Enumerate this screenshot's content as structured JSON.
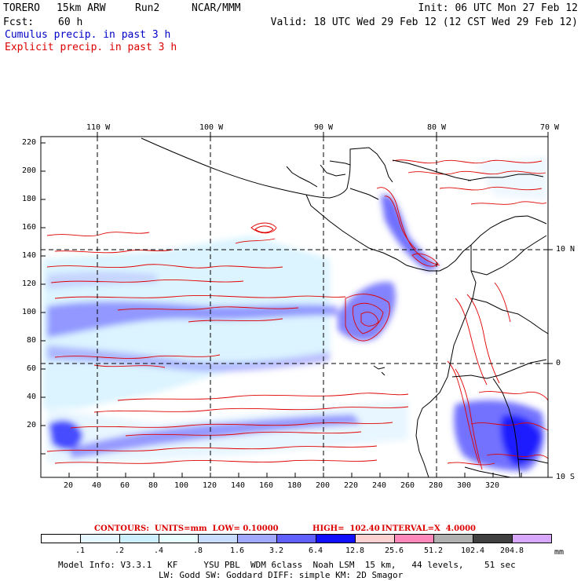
{
  "header": {
    "model": "TORERO",
    "resolution": "15km ARW",
    "run": "Run2",
    "org": "NCAR/MMM",
    "init": "Init: 06 UTC Mon 27 Feb 12",
    "fcst_label": "Fcst:",
    "fcst_value": "60 h",
    "valid": "Valid: 18 UTC Wed 29 Feb 12 (12 CST Wed 29 Feb 12)",
    "field1": "Cumulus precip. in past 3 h",
    "field2": "Explicit precip. in past 3 h"
  },
  "axes": {
    "lon_labels": [
      "110 W",
      "100 W",
      "90 W",
      "80 W",
      "70 W"
    ],
    "lat_labels": [
      "10 N",
      "0",
      "10 S"
    ],
    "x_ticks": [
      "20",
      "40",
      "60",
      "80",
      "100",
      "120",
      "140",
      "160",
      "180",
      "200",
      "220",
      "240",
      "260",
      "280",
      "300",
      "320"
    ],
    "y_ticks": [
      "220",
      "200",
      "180",
      "160",
      "140",
      "120",
      "100",
      "80",
      "60",
      "40",
      "20"
    ]
  },
  "contour_info": {
    "units": "CONTOURS:  UNITS=mm  LOW= 0.10000",
    "high": "HIGH=  102.40",
    "interval": "INTERVAL=X  4.0000"
  },
  "colorbar": {
    "thresholds": [
      ".1",
      ".2",
      ".4",
      ".8",
      "1.6",
      "3.2",
      "6.4",
      "12.8",
      "25.6",
      "51.2",
      "102.4",
      "204.8"
    ],
    "unit": "mm",
    "colors": [
      "#ffffff",
      "#e6f7ff",
      "#ccf0ff",
      "#e8ffff",
      "#c8dcff",
      "#a0a8ff",
      "#6060ff",
      "#1010ff",
      "#ffd0d0",
      "#ff88bb",
      "#b0b0b0",
      "#404040",
      "#d8a8ff"
    ]
  },
  "footer": {
    "line1": "Model Info: V3.3.1   KF     YSU PBL  WDM 6class  Noah LSM  15 km,   44 levels,    51 sec",
    "line2": "LW: Godd SW: Goddard DIFF: simple KM: 2D Smagor"
  }
}
